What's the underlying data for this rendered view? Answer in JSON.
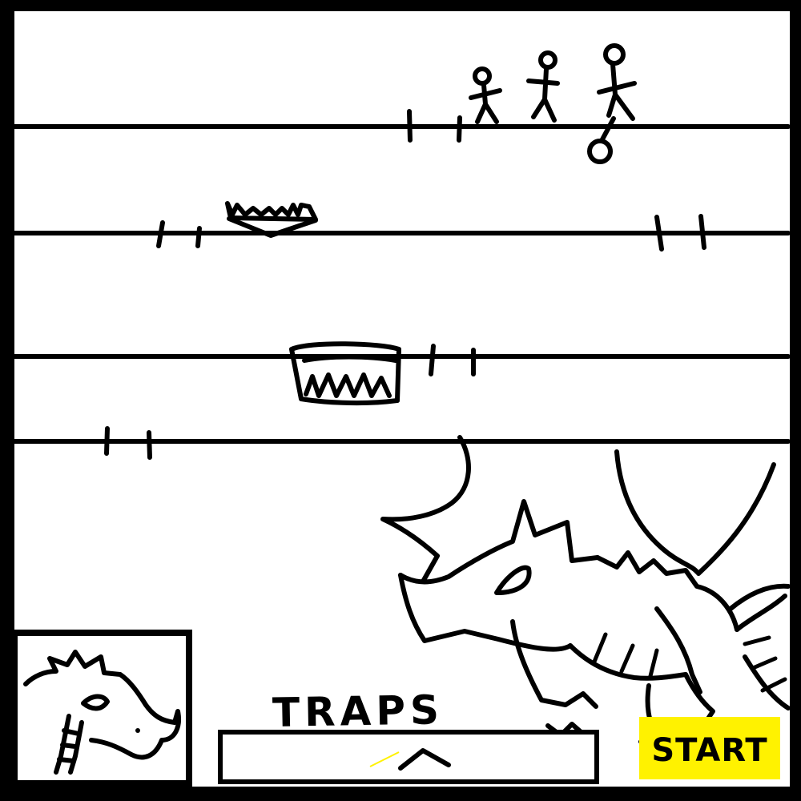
{
  "traps_panel": {
    "label": "TRAPS",
    "expand_icon": "chevron-up-icon"
  },
  "start_button": {
    "label": "START",
    "color": "#fff200"
  },
  "portrait": {
    "icon": "dragon-head-icon"
  },
  "scene": {
    "background": "#ffffff",
    "ink": "#000000",
    "lanes": 4,
    "hero_count": 3
  }
}
